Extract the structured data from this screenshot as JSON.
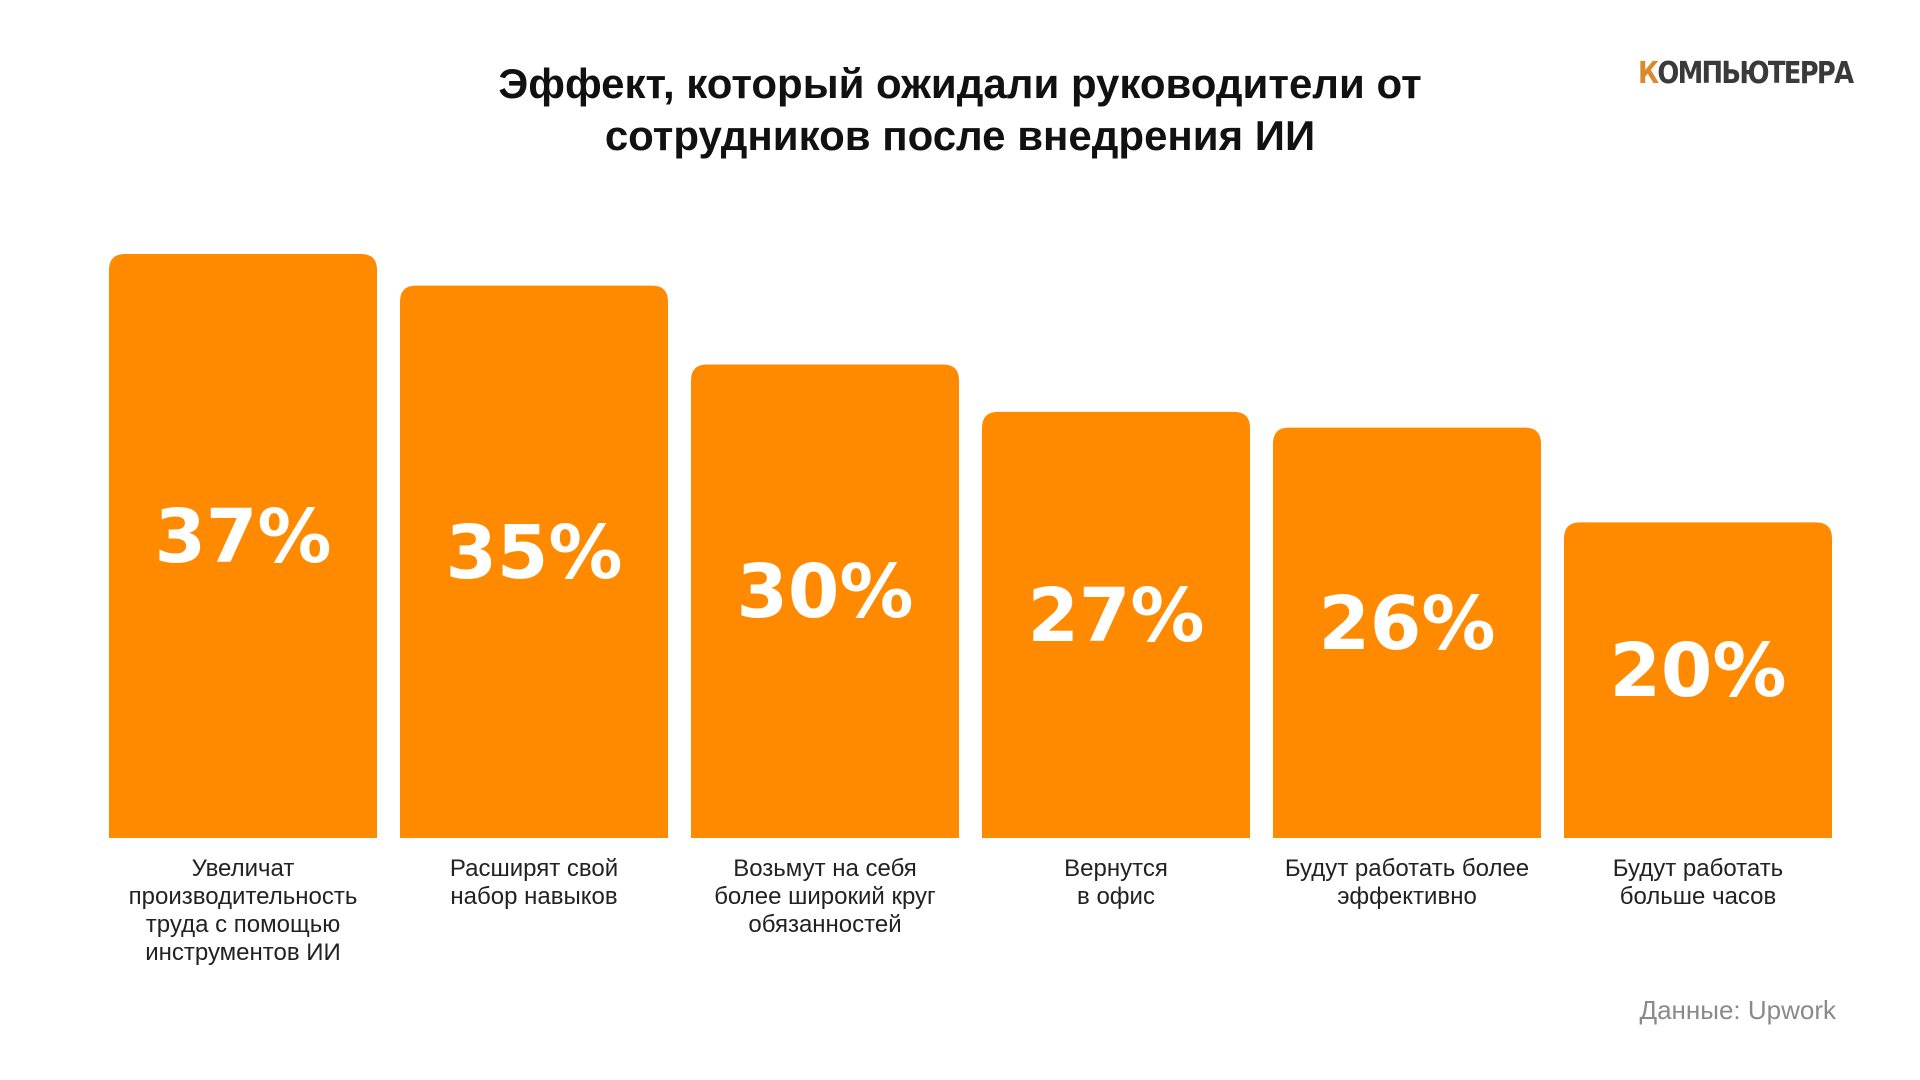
{
  "title_lines": [
    "Эффект, который ожидали руководители от",
    "сотрудников после внедрения ИИ"
  ],
  "logo": {
    "first_letter": "К",
    "rest": "ОМПЬЮТЕРРА"
  },
  "source": "Данные: Upwork",
  "colors": {
    "bar": "#FF8A00",
    "bar_label": "#FFFFFF",
    "logo_accent": "#D98A2B"
  },
  "chart_data": {
    "type": "bar",
    "title": "Эффект, который ожидали руководители от сотрудников после внедрения ИИ",
    "categories": [
      "Увеличат производительность труда с помощью инструментов ИИ",
      "Расширят свой набор навыков",
      "Возьмут на себя более широкий круг обязанностей",
      "Вернутся в офис",
      "Будут работать более эффективно",
      "Будут работать больше часов"
    ],
    "category_lines": [
      [
        "Увеличат",
        "производительность",
        "труда с помощью",
        "инструментов ИИ"
      ],
      [
        "Расширят свой",
        "набор навыков"
      ],
      [
        "Возьмут на себя",
        "более широкий круг",
        "обязанностей"
      ],
      [
        "Вернутся",
        "в офис"
      ],
      [
        "Будут работать более",
        "эффективно"
      ],
      [
        "Будут работать",
        "больше часов"
      ]
    ],
    "values": [
      37,
      35,
      30,
      27,
      26,
      20
    ],
    "value_labels": [
      "37%",
      "35%",
      "30%",
      "27%",
      "26%",
      "20%"
    ],
    "unit": "%",
    "xlabel": "",
    "ylabel": "",
    "ylim": [
      0,
      37
    ],
    "grid": false,
    "legend": "none"
  }
}
